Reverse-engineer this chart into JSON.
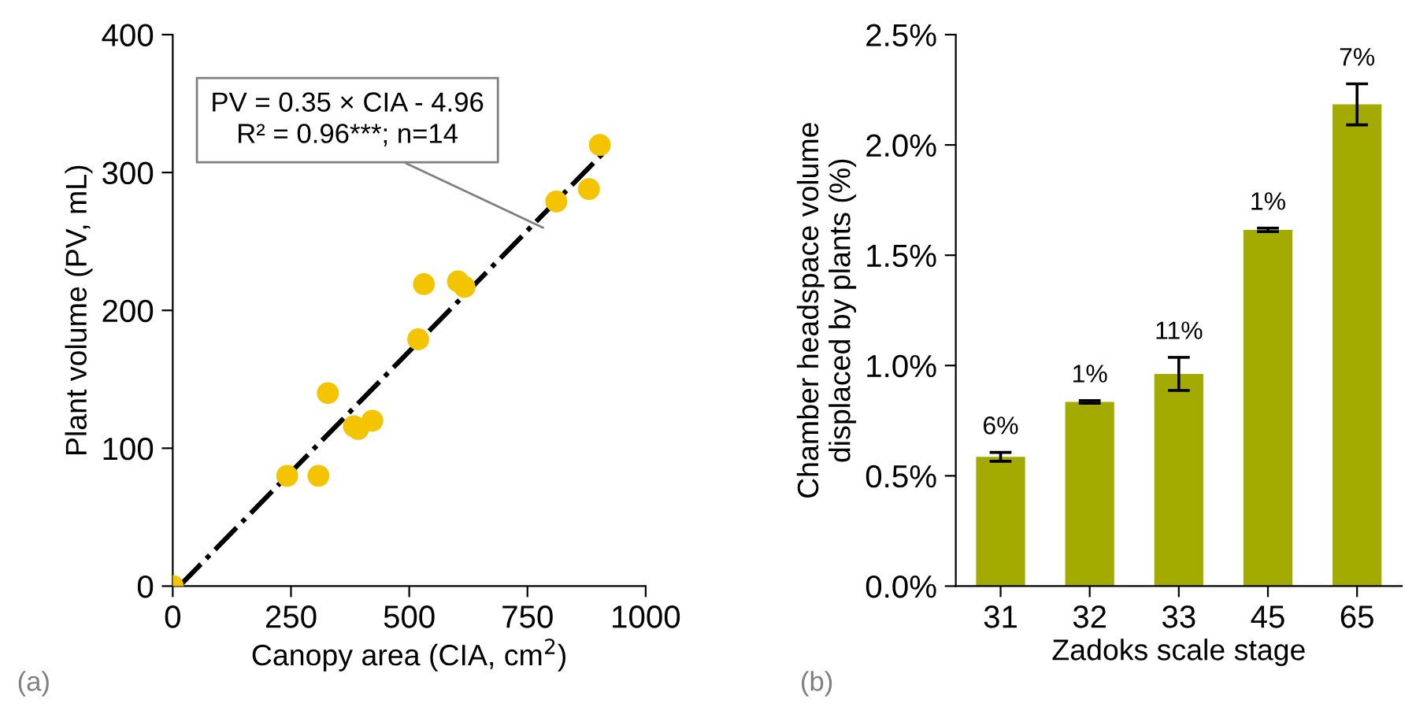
{
  "chart_data": [
    {
      "type": "scatter",
      "xlabel": "Canopy area (CIA, cm$^{2}$)",
      "ylabel": "Plant volume (PV, mL)",
      "xlim": [
        0,
        1000
      ],
      "xticks": [
        0,
        250,
        500,
        750,
        1000
      ],
      "ylim": [
        0,
        400
      ],
      "yticks": [
        0,
        100,
        200,
        300,
        400
      ],
      "grid": false,
      "series": [
        {
          "type": "scatter",
          "color": "#f5c400",
          "marker": "circle",
          "x": [
            0,
            242,
            308,
            328,
            383,
            392,
            422,
            519,
            531,
            603,
            617,
            811,
            880,
            903
          ],
          "values": [
            0,
            80,
            80,
            140,
            116,
            114,
            120,
            179,
            219,
            221,
            217,
            279,
            288,
            320
          ]
        },
        {
          "type": "line",
          "color": "#000000",
          "line_style": "dashdot",
          "marker": "none",
          "x": [
            14,
            910
          ],
          "values": [
            0,
            314
          ]
        }
      ],
      "annotations": [
        {
          "text": "PV = 0.35 × CIA - 4.96\nR² = 0.96***; n=14",
          "x": 783,
          "y": 260
        },
        "(a)"
      ]
    },
    {
      "type": "bar",
      "xlabel": "Zadoks scale stage",
      "ylabel": "Chamber headspace volume\ndisplaced by plants (%)",
      "categories": [
        "31",
        "32",
        "33",
        "45",
        "65"
      ],
      "values": [
        0.586,
        0.835,
        0.962,
        1.615,
        2.184
      ],
      "errors": [
        0.02,
        0.006,
        0.075,
        0.008,
        0.093
      ],
      "color": "#a3ab00",
      "ylim": [
        0,
        2.5
      ],
      "yticks": [
        {
          "value": 0,
          "label": "0.0%"
        },
        {
          "value": 0.5,
          "label": "0.5%"
        },
        {
          "value": 1.0,
          "label": "1.0%"
        },
        {
          "value": 1.5,
          "label": "1.5%"
        },
        {
          "value": 2.0,
          "label": "2.0%"
        },
        {
          "value": 2.5,
          "label": "2.5%"
        }
      ],
      "grid": false,
      "annotations": [
        {
          "text": "6%",
          "x": "31",
          "y": 0.606
        },
        {
          "text": "1%",
          "x": "32",
          "y": 0.841
        },
        {
          "text": "11%",
          "x": "33",
          "y": 1.037
        },
        {
          "text": "1%",
          "x": "45",
          "y": 1.623
        },
        {
          "text": "7%",
          "x": "65",
          "y": 2.277
        },
        "(b)"
      ]
    }
  ]
}
